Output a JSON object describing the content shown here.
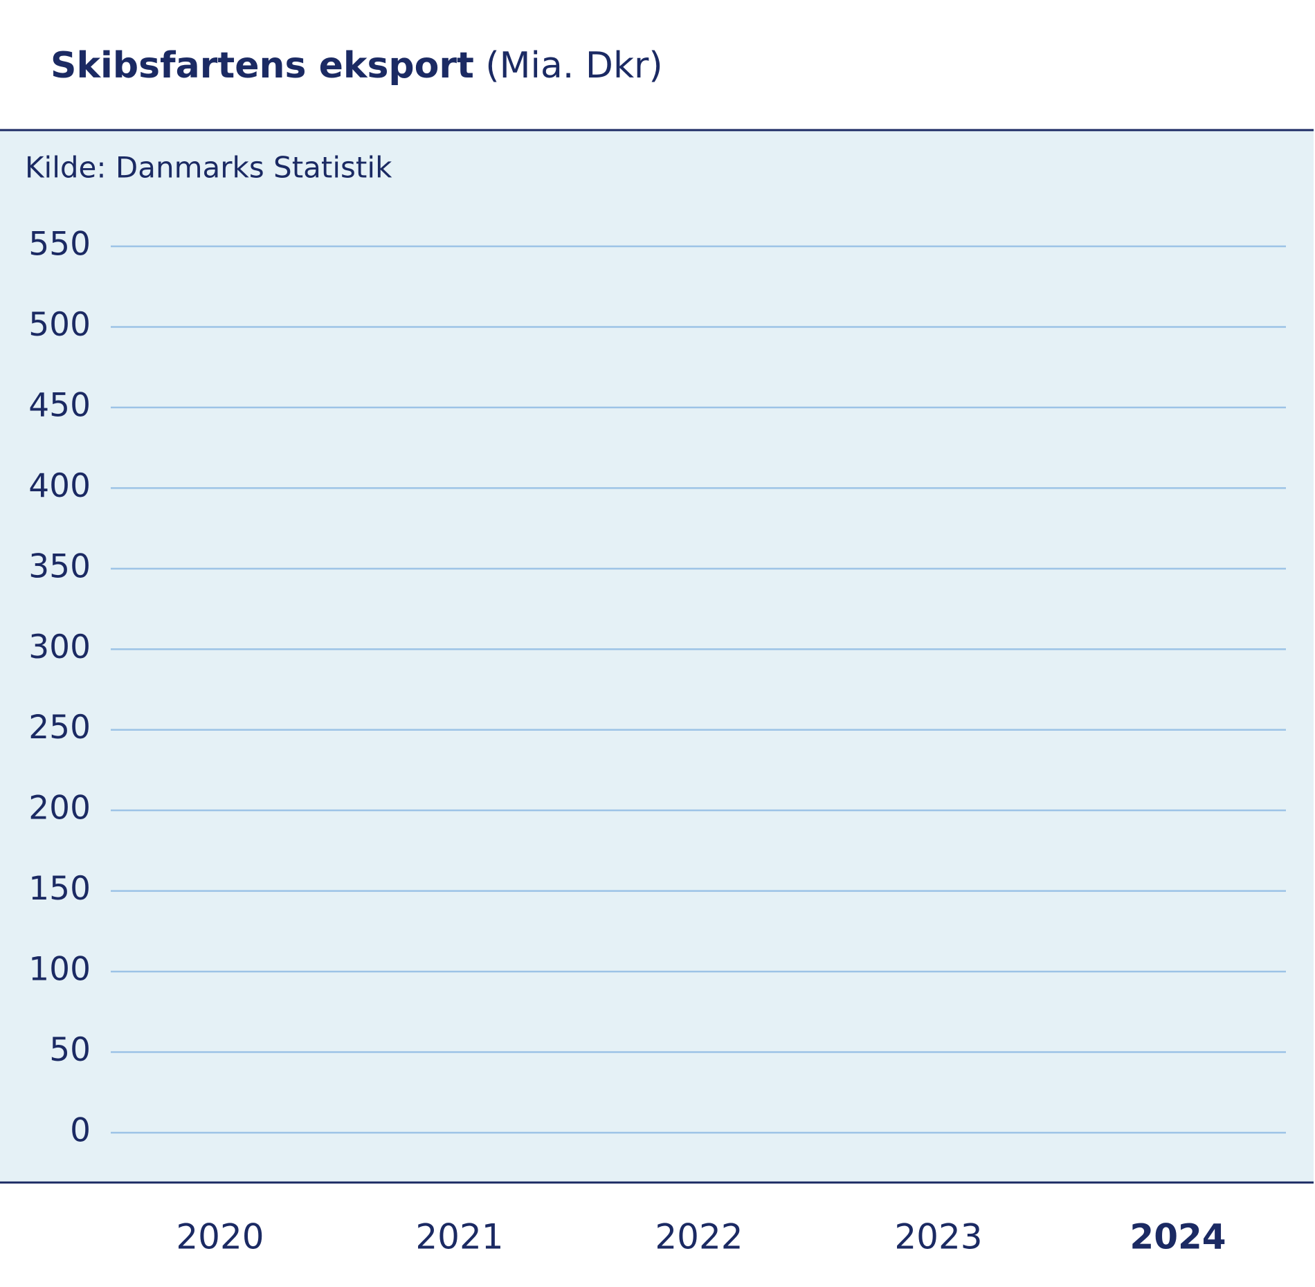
{
  "chart_data": {
    "type": "bar",
    "title": "Skibsfartens eksport",
    "unit": "(Mia. Dkr)",
    "source": "Kilde: Danmarks Statistik",
    "categories": [
      "2020",
      "2021",
      "2022",
      "2023",
      "2024"
    ],
    "highlight": 4,
    "ylim": [
      -20,
      550
    ],
    "yticks": [
      0,
      50,
      100,
      150,
      200,
      250,
      300,
      350,
      400,
      450,
      500,
      550
    ],
    "grid": true,
    "grid_color": "#9cc3e6",
    "text_color": "#1b2a63",
    "background": "#e5f1f6"
  }
}
